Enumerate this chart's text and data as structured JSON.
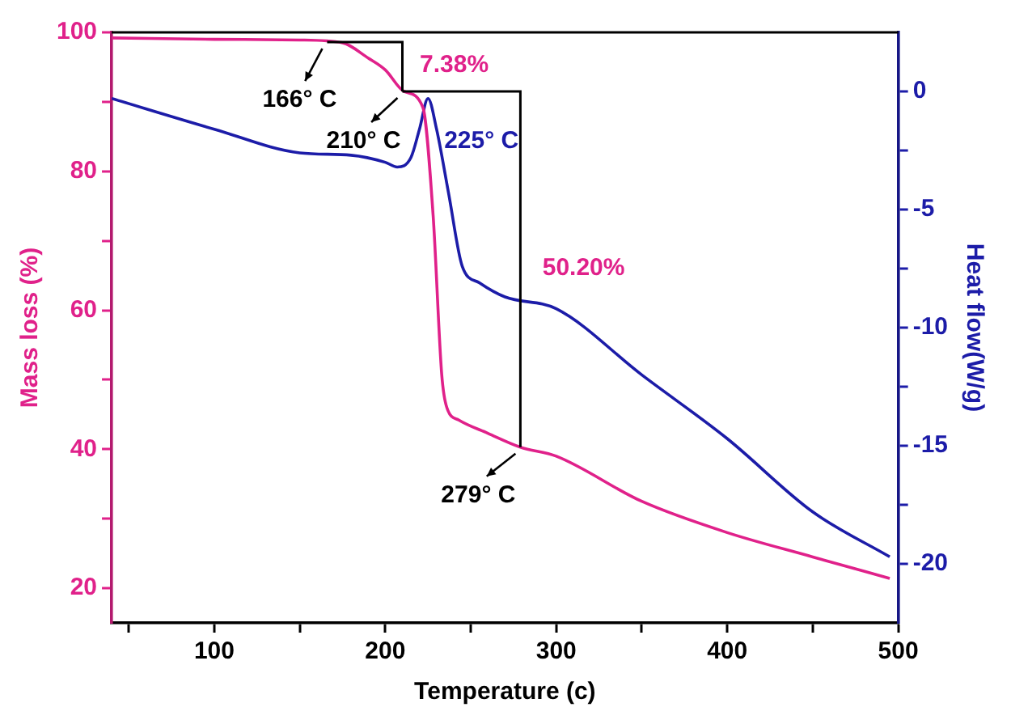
{
  "chart_data": {
    "type": "line",
    "xlabel": "Temperature (c)",
    "ylabel": "Mass loss (%)",
    "y2label": "Heat flow(W/g)",
    "xlim": [
      40,
      500
    ],
    "xticks": [
      {
        "value": 50,
        "label": null
      },
      100,
      {
        "value": 150,
        "label": null
      },
      200,
      {
        "value": 250,
        "label": null
      },
      300,
      {
        "value": 350,
        "label": null
      },
      400,
      {
        "value": 450,
        "label": null
      },
      500
    ],
    "ylim": [
      15,
      100
    ],
    "yticks": [
      20,
      {
        "value": 30,
        "label": null
      },
      40,
      {
        "value": 50,
        "label": null
      },
      60,
      {
        "value": 70,
        "label": null
      },
      80,
      {
        "value": 90,
        "label": null
      },
      100
    ],
    "y2lim": [
      -22.5,
      2.5
    ],
    "y2ticks": [
      -20,
      {
        "value": -17.5,
        "label": null
      },
      -15,
      {
        "value": -12.5,
        "label": null
      },
      -10,
      {
        "value": -7.5,
        "label": null
      },
      -5,
      {
        "value": -2.5,
        "label": null
      },
      0
    ],
    "grid": false,
    "legend": false,
    "marker": "none",
    "line_style": "solid",
    "series": [
      {
        "color": "#e0218a",
        "x": [
          40,
          100,
          150,
          175,
          190,
          200,
          211,
          222,
          228,
          233,
          236,
          243,
          260,
          279,
          300,
          350,
          400,
          450,
          495
        ],
        "values": [
          99.2,
          99,
          98.9,
          98.5,
          96.3,
          94.6,
          91.5,
          89.2,
          73.6,
          50.8,
          46,
          44.2,
          42.3,
          40.3,
          39,
          32.5,
          28,
          24.5,
          21.4
        ]
      },
      {
        "color": "#1c1ca8",
        "axis": "y2",
        "x": [
          40,
          100,
          150,
          180,
          200,
          207,
          215,
          220,
          225,
          230,
          237,
          245,
          255,
          270,
          300,
          350,
          400,
          450,
          495
        ],
        "values": [
          -0.3,
          -1.6,
          -2.6,
          -2.7,
          -3.0,
          -3.2,
          -2.8,
          -1.6,
          -0.3,
          -1.6,
          -4.3,
          -7.4,
          -8.1,
          -8.7,
          -9.2,
          -12,
          -14.7,
          -17.8,
          -19.7
        ]
      }
    ],
    "annotations": [
      {
        "text": "166° C",
        "x": 166,
        "y": 98.6
      },
      {
        "text": "210° C",
        "x": 210,
        "y": 91.5
      },
      {
        "text": "279° C",
        "x": 279,
        "y": 40.3
      },
      {
        "text": "7.38%",
        "x": 211,
        "y": 91.5
      },
      "225° C",
      "50.20%"
    ]
  }
}
